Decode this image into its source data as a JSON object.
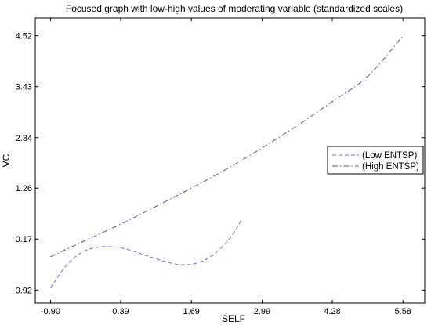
{
  "chart_data": {
    "type": "line",
    "title": "Focused graph with low-high values of moderating variable (standardized scales)",
    "xlabel": "SELF",
    "ylabel": "VC",
    "xlim": [
      -1.18,
      5.98
    ],
    "ylim": [
      -1.2,
      4.9
    ],
    "xticks": [
      -0.9,
      0.39,
      1.69,
      2.99,
      4.28,
      5.58
    ],
    "xtick_labels": [
      "-0.90",
      "0.39",
      "1.69",
      "2.99",
      "4.28",
      "5.58"
    ],
    "yticks": [
      -0.92,
      0.17,
      1.26,
      2.34,
      3.43,
      4.52
    ],
    "ytick_labels": [
      "-0.92",
      "0.17",
      "1.26",
      "2.34",
      "3.43",
      "4.52"
    ],
    "grid": false,
    "legend_position": "right",
    "series": [
      {
        "name": "(Low ENTSP)",
        "color": "#7070c8",
        "dash": "dashed",
        "x": [
          -0.9,
          -0.6,
          -0.3,
          0.0,
          0.3,
          0.6,
          0.9,
          1.2,
          1.5,
          1.8,
          2.1,
          2.4,
          2.6
        ],
        "y": [
          -0.88,
          -0.38,
          -0.1,
          0.0,
          0.0,
          -0.08,
          -0.2,
          -0.31,
          -0.38,
          -0.34,
          -0.16,
          0.19,
          0.56
        ]
      },
      {
        "name": "(High ENTSP)",
        "color": "#5a5a8e",
        "dash": "dashdot",
        "x": [
          -0.9,
          -0.26,
          0.39,
          1.04,
          1.69,
          2.34,
          2.99,
          3.64,
          4.28,
          4.93,
          5.58
        ],
        "y": [
          -0.21,
          0.14,
          0.49,
          0.87,
          1.26,
          1.67,
          2.12,
          2.6,
          3.11,
          3.65,
          4.52
        ]
      }
    ]
  }
}
